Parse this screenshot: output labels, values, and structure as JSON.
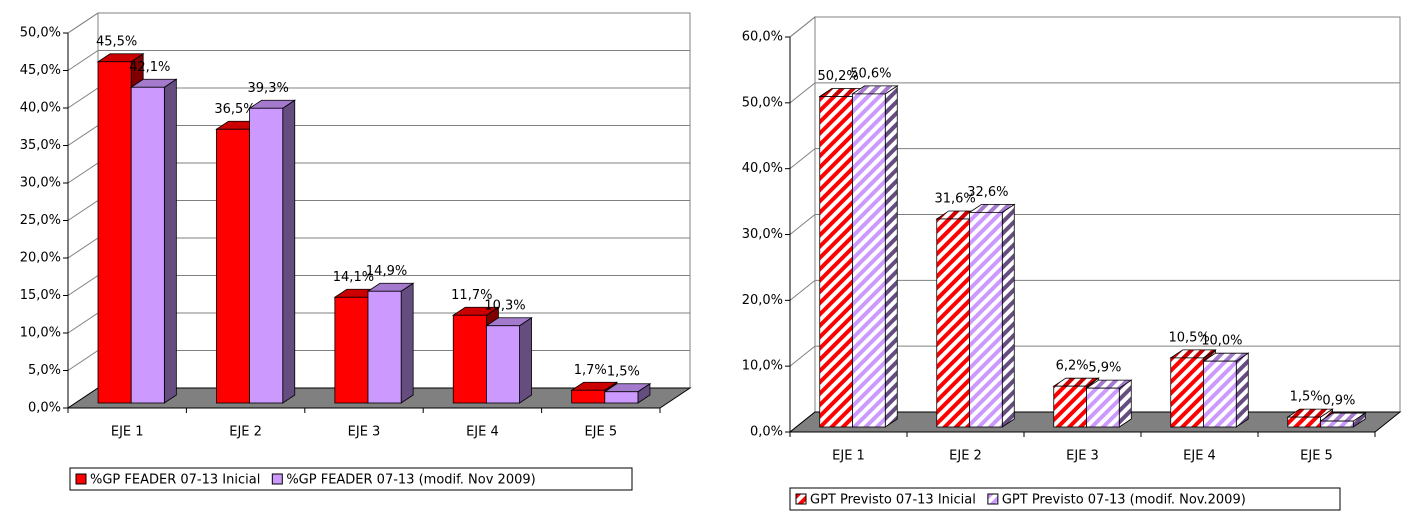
{
  "chart_data": [
    {
      "type": "bar3d",
      "categories": [
        "EJE 1",
        "EJE 2",
        "EJE 3",
        "EJE 4",
        "EJE 5"
      ],
      "series": [
        {
          "name": "%GP FEADER 07-13 Inicial",
          "color": "#ff0000",
          "values": [
            45.5,
            36.5,
            14.1,
            11.7,
            1.7
          ],
          "value_labels": [
            "45,5%",
            "36,5%",
            "14,1%",
            "11,7%",
            "1,7%"
          ]
        },
        {
          "name": "%GP FEADER 07-13 (modif. Nov 2009)",
          "color": "#cc99ff",
          "values": [
            42.1,
            39.3,
            14.9,
            10.3,
            1.5
          ],
          "value_labels": [
            "42,1%",
            "39,3%",
            "14,9%",
            "10,3%",
            "1,5%"
          ]
        }
      ],
      "ylim": [
        0,
        50
      ],
      "yticks": [
        {
          "value": 0,
          "label": "0,0%"
        },
        {
          "value": 5,
          "label": "5,0%"
        },
        {
          "value": 10,
          "label": "10,0%"
        },
        {
          "value": 15,
          "label": "15,0%"
        },
        {
          "value": 20,
          "label": "20,0%"
        },
        {
          "value": 25,
          "label": "25,0%"
        },
        {
          "value": 30,
          "label": "30,0%"
        },
        {
          "value": 35,
          "label": "35,0%"
        },
        {
          "value": 40,
          "label": "40,0%"
        },
        {
          "value": 45,
          "label": "45,0%"
        },
        {
          "value": 50,
          "label": "50,0%"
        }
      ],
      "grid": true,
      "hatched": false,
      "legend": "bottom"
    },
    {
      "type": "bar3d",
      "categories": [
        "EJE 1",
        "EJE 2",
        "EJE 3",
        "EJE 4",
        "EJE 5"
      ],
      "series": [
        {
          "name": "GPT Previsto 07-13 Inicial",
          "color": "#ff0000",
          "values": [
            50.2,
            31.6,
            6.2,
            10.5,
            1.5
          ],
          "value_labels": [
            "50,2%",
            "31,6%",
            "6,2%",
            "10,5%",
            "1,5%"
          ]
        },
        {
          "name": "GPT Previsto 07-13 (modif. Nov.2009)",
          "color": "#cc99ff",
          "values": [
            50.6,
            32.6,
            5.9,
            10.0,
            0.9
          ],
          "value_labels": [
            "50,6%",
            "32,6%",
            "5,9%",
            "10,0%",
            "0,9%"
          ]
        }
      ],
      "ylim": [
        0,
        60
      ],
      "yticks": [
        {
          "value": 0,
          "label": "0,0%"
        },
        {
          "value": 10,
          "label": "10,0%"
        },
        {
          "value": 20,
          "label": "20,0%"
        },
        {
          "value": 30,
          "label": "30,0%"
        },
        {
          "value": 40,
          "label": "40,0%"
        },
        {
          "value": 50,
          "label": "50,0%"
        },
        {
          "value": 60,
          "label": "60,0%"
        }
      ],
      "grid": true,
      "hatched": true,
      "legend": "bottom"
    }
  ]
}
